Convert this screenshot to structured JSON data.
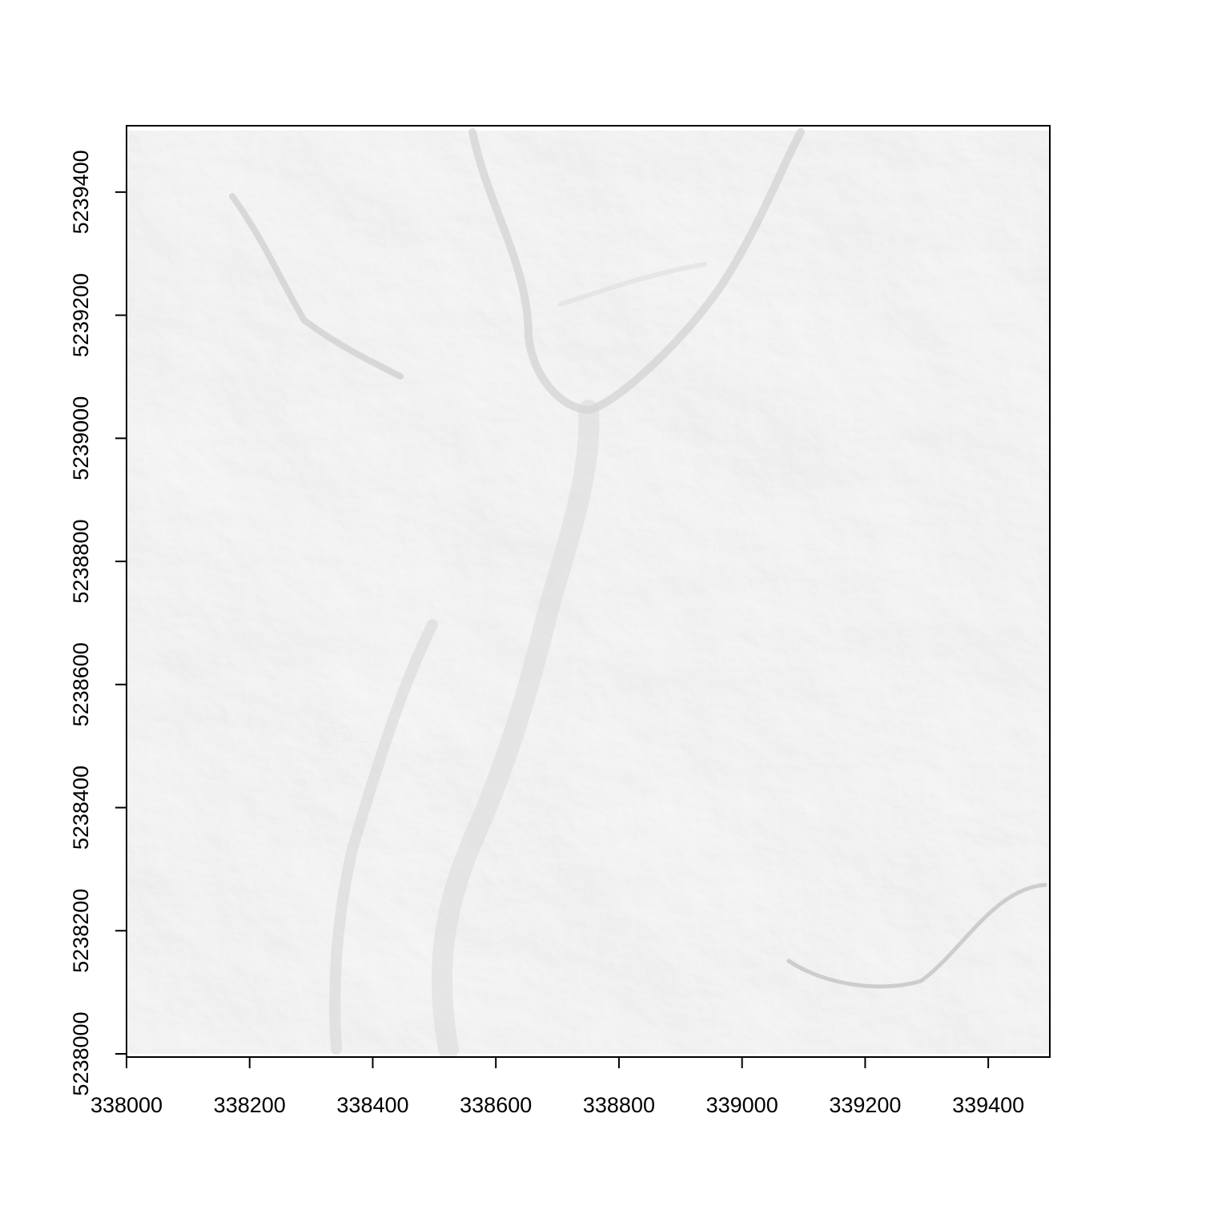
{
  "chart_data": {
    "type": "heatmap",
    "title": "",
    "xlabel": "",
    "ylabel": "",
    "xlim": [
      338000,
      339500
    ],
    "ylim": [
      5238000,
      5239500
    ],
    "x_ticks": [
      338000,
      338200,
      338400,
      338600,
      338800,
      339000,
      339200,
      339400
    ],
    "y_ticks": [
      5238000,
      5238200,
      5238400,
      5238600,
      5238800,
      5239000,
      5239200,
      5239400
    ],
    "x_tick_labels": [
      "338000",
      "338200",
      "338400",
      "338600",
      "338800",
      "339000",
      "339200",
      "339400"
    ],
    "y_tick_labels": [
      "5238000",
      "5238200",
      "5238400",
      "5238600",
      "5238800",
      "5239000",
      "5239200",
      "5239400"
    ],
    "raster_extent": {
      "xmin": 338000,
      "xmax": 339500,
      "ymin": 5238000,
      "ymax": 5239500
    },
    "colormap": "grayscale",
    "grid": false,
    "legend": "none"
  }
}
